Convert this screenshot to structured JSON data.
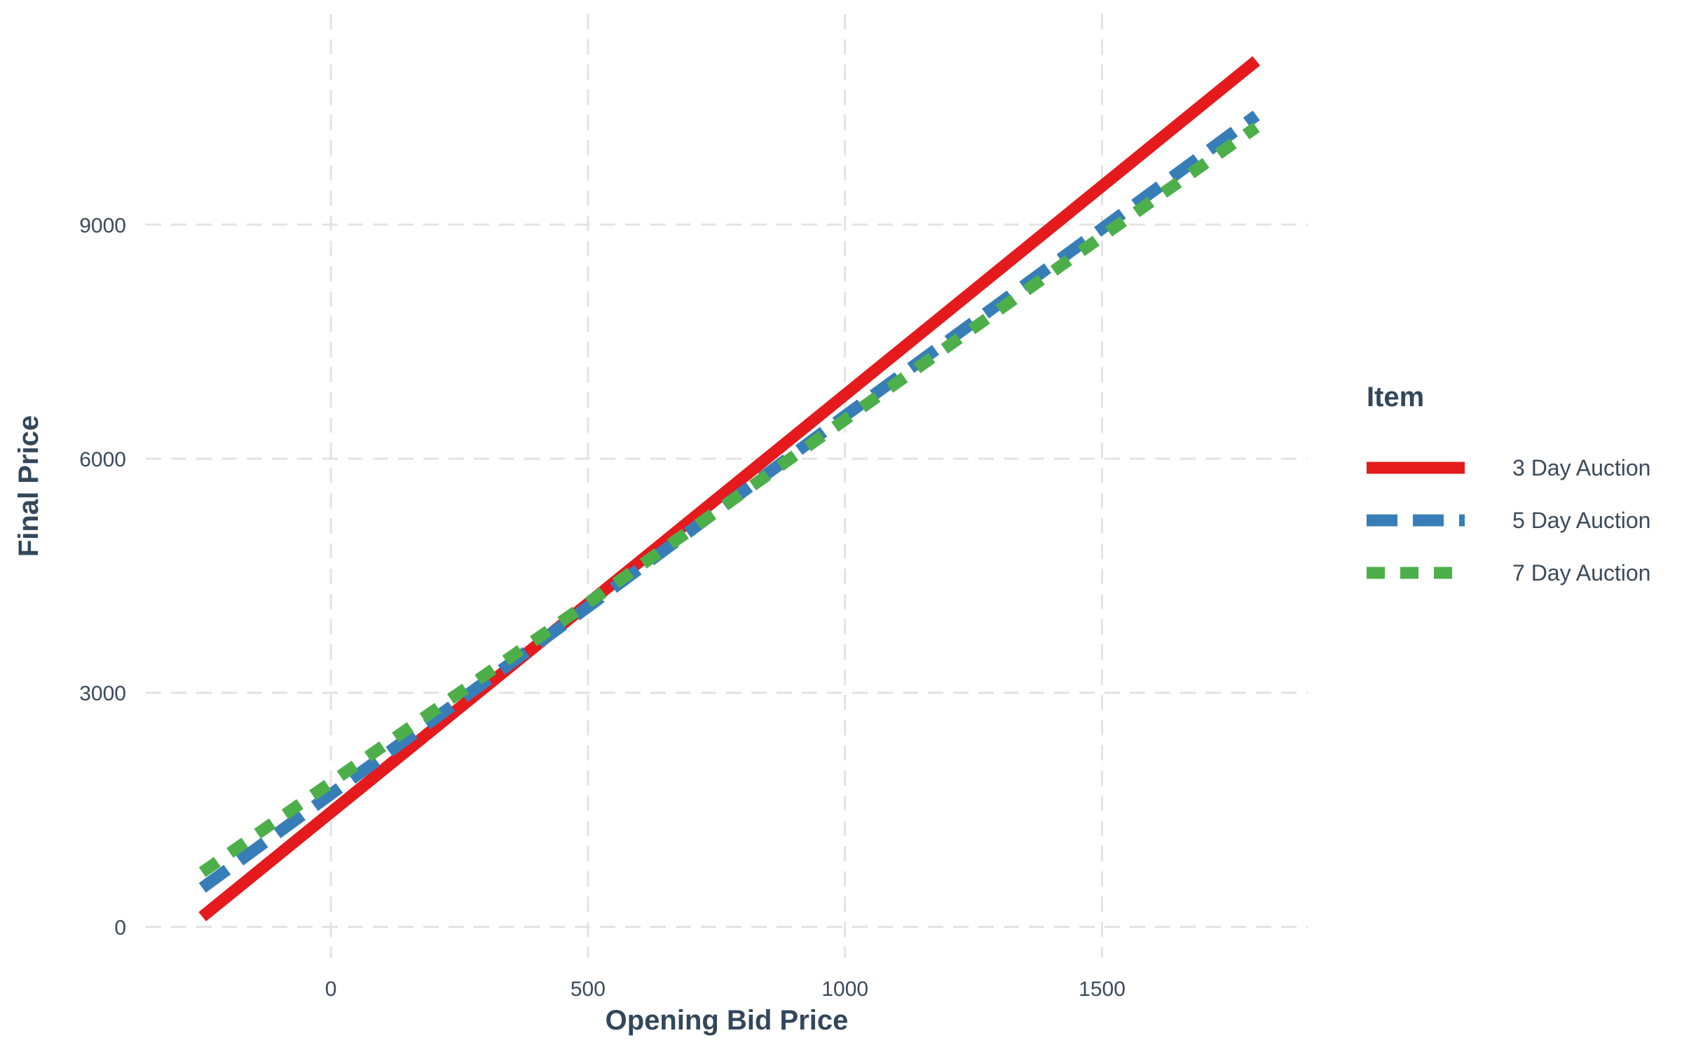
{
  "chart_data": {
    "type": "line",
    "title": "",
    "xlabel": "Opening Bid Price",
    "ylabel": "Final Price",
    "xlim": [
      -360,
      1900
    ],
    "ylim": [
      -400,
      11700
    ],
    "x_ticks": [
      0,
      500,
      1000,
      1500
    ],
    "y_ticks": [
      0,
      3000,
      6000,
      9000
    ],
    "x_tick_labels": [
      "0",
      "500",
      "1000",
      "1500"
    ],
    "y_tick_labels": [
      "0",
      "3000",
      "6000",
      "9000"
    ],
    "grid": true,
    "legend": {
      "title": "Item",
      "position": "right"
    },
    "series": [
      {
        "name": "3 Day Auction",
        "color": "#e41a1c",
        "dash": "solid",
        "x": [
          -250,
          1800
        ],
        "y": [
          130,
          11100
        ]
      },
      {
        "name": "5 Day Auction",
        "color": "#377eb8",
        "dash": "long-dash",
        "x": [
          -250,
          0,
          500,
          1000,
          1500,
          1800
        ],
        "y": [
          500,
          1700,
          4100,
          6550,
          8950,
          10400
        ]
      },
      {
        "name": "7 Day Auction",
        "color": "#4daf4a",
        "dash": "short-dash",
        "x": [
          -250,
          0,
          500,
          1000,
          1500,
          1800
        ],
        "y": [
          700,
          1850,
          4150,
          6500,
          8850,
          10250
        ]
      }
    ]
  }
}
